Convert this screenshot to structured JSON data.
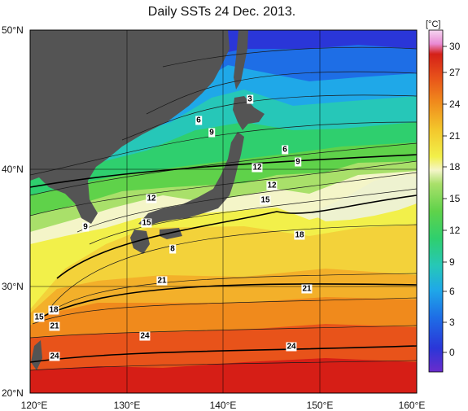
{
  "title": "Daily SSTs 24 Dec. 2013.",
  "latitude_labels": [
    "50°N",
    "40°N",
    "30°N",
    "20°N"
  ],
  "longitude_labels": [
    "120°E",
    "130°E",
    "140°E",
    "150°E",
    "160°E"
  ],
  "colorbar": {
    "unit": "[°C]",
    "ticks": [
      "30",
      "27",
      "24",
      "21",
      "18",
      "15",
      "12",
      "9",
      "6",
      "3",
      "0"
    ],
    "colors": [
      "#6a2ccc",
      "#2a36d8",
      "#1e6ee6",
      "#1fa8e8",
      "#26c7b8",
      "#2fcf6e",
      "#5fd24a",
      "#a9e06a",
      "#f4f5c8",
      "#f2f04a",
      "#f3c62b",
      "#f08a1c",
      "#e8531a",
      "#d42018",
      "#e98ad4"
    ]
  },
  "contour_labels": [
    "3",
    "6",
    "9",
    "6",
    "9",
    "12",
    "12",
    "12",
    "15",
    "9",
    "15",
    "8",
    "18",
    "21",
    "21",
    "18",
    "15",
    "21",
    "24",
    "24",
    "24"
  ],
  "colors": {
    "land": "#545454",
    "frame": "#000000"
  }
}
